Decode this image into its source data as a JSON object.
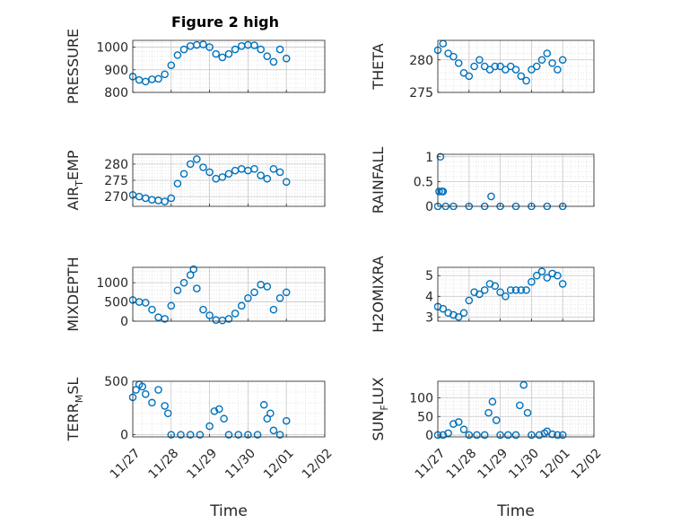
{
  "figure": {
    "title": "Figure 2 high",
    "marker_color": "#0072BD",
    "grid": true,
    "date_ticks": [
      "11/27",
      "11/28",
      "11/29",
      "11/30",
      "12/01",
      "12/02"
    ]
  },
  "chart_data": [
    {
      "type": "scatter",
      "panel": "pressure",
      "ylabel": "PRESSURE",
      "xlabel": "",
      "ylim": [
        800,
        1030
      ],
      "yticks": [
        800,
        900,
        1000
      ],
      "show_xticks": false,
      "x": [
        "11/27 00:00",
        "11/27 04:00",
        "11/27 08:00",
        "11/27 12:00",
        "11/27 16:00",
        "11/27 20:00",
        "11/28 00:00",
        "11/28 04:00",
        "11/28 08:00",
        "11/28 12:00",
        "11/28 16:00",
        "11/28 20:00",
        "11/29 00:00",
        "11/29 04:00",
        "11/29 08:00",
        "11/29 12:00",
        "11/29 16:00",
        "11/29 20:00",
        "11/30 00:00",
        "11/30 04:00",
        "11/30 08:00",
        "11/30 12:00",
        "11/30 16:00",
        "11/30 20:00",
        "12/01 00:00"
      ],
      "values": [
        870,
        855,
        848,
        858,
        860,
        880,
        920,
        965,
        990,
        1005,
        1010,
        1012,
        1000,
        970,
        955,
        970,
        990,
        1005,
        1010,
        1008,
        990,
        960,
        935,
        990,
        950
      ]
    },
    {
      "type": "scatter",
      "panel": "theta",
      "ylabel": "THETA",
      "xlabel": "",
      "ylim": [
        275,
        283
      ],
      "yticks": [
        275,
        280
      ],
      "show_xticks": false,
      "x": [
        "11/27 00:00",
        "11/27 04:00",
        "11/27 08:00",
        "11/27 12:00",
        "11/27 16:00",
        "11/27 20:00",
        "11/28 00:00",
        "11/28 04:00",
        "11/28 08:00",
        "11/28 12:00",
        "11/28 16:00",
        "11/28 20:00",
        "11/29 00:00",
        "11/29 04:00",
        "11/29 08:00",
        "11/29 12:00",
        "11/29 16:00",
        "11/29 20:00",
        "11/30 00:00",
        "11/30 04:00",
        "11/30 08:00",
        "11/30 12:00",
        "11/30 16:00",
        "11/30 20:00",
        "12/01 00:00"
      ],
      "values": [
        281.5,
        282.5,
        281.0,
        280.5,
        279.5,
        278.0,
        277.5,
        279.0,
        280.0,
        279.0,
        278.5,
        279.0,
        279.0,
        278.5,
        279.0,
        278.5,
        277.5,
        276.8,
        278.5,
        279.0,
        280.0,
        281.0,
        279.5,
        278.5,
        280.0
      ]
    },
    {
      "type": "scatter",
      "panel": "air_temp",
      "ylabel": "AIR_TEMP",
      "xlabel": "",
      "ylim": [
        267,
        283
      ],
      "yticks": [
        270,
        275,
        280
      ],
      "show_xticks": false,
      "x": [
        "11/27 00:00",
        "11/27 04:00",
        "11/27 08:00",
        "11/27 12:00",
        "11/27 16:00",
        "11/27 20:00",
        "11/28 00:00",
        "11/28 04:00",
        "11/28 08:00",
        "11/28 12:00",
        "11/28 16:00",
        "11/28 20:00",
        "11/29 00:00",
        "11/29 04:00",
        "11/29 08:00",
        "11/29 12:00",
        "11/29 16:00",
        "11/29 20:00",
        "11/30 00:00",
        "11/30 04:00",
        "11/30 08:00",
        "11/30 12:00",
        "11/30 16:00",
        "11/30 20:00",
        "12/01 00:00"
      ],
      "values": [
        270.5,
        270.0,
        269.5,
        269.0,
        268.8,
        268.5,
        269.5,
        274.0,
        277.0,
        280.0,
        281.5,
        279.0,
        277.5,
        275.5,
        276.0,
        277.0,
        278.0,
        278.5,
        278.0,
        278.5,
        276.5,
        275.5,
        278.5,
        277.5,
        274.5
      ]
    },
    {
      "type": "scatter",
      "panel": "rainfall",
      "ylabel": "RAINFALL",
      "xlabel": "",
      "ylim": [
        0,
        1.05
      ],
      "yticks": [
        0,
        0.5,
        1
      ],
      "show_xticks": false,
      "x": [
        "11/27 00:00",
        "11/27 01:00",
        "11/27 02:00",
        "11/27 03:00",
        "11/27 04:00",
        "11/27 06:00",
        "11/27 12:00",
        "11/28 00:00",
        "11/28 12:00",
        "11/28 17:00",
        "11/29 00:00",
        "11/29 12:00",
        "11/30 00:00",
        "11/30 12:00",
        "12/01 00:00"
      ],
      "values": [
        0,
        0.3,
        1.0,
        0.3,
        0.3,
        0,
        0,
        0,
        0,
        0.2,
        0,
        0,
        0,
        0,
        0
      ]
    },
    {
      "type": "scatter",
      "panel": "mixdepth",
      "ylabel": "MIXDEPTH",
      "xlabel": "",
      "ylim": [
        0,
        1400
      ],
      "yticks": [
        0,
        500,
        1000
      ],
      "show_xticks": false,
      "x": [
        "11/27 00:00",
        "11/27 04:00",
        "11/27 08:00",
        "11/27 12:00",
        "11/27 16:00",
        "11/27 20:00",
        "11/28 00:00",
        "11/28 04:00",
        "11/28 08:00",
        "11/28 12:00",
        "11/28 14:00",
        "11/28 16:00",
        "11/28 20:00",
        "11/29 00:00",
        "11/29 04:00",
        "11/29 08:00",
        "11/29 12:00",
        "11/29 16:00",
        "11/29 20:00",
        "11/30 00:00",
        "11/30 04:00",
        "11/30 08:00",
        "11/30 12:00",
        "11/30 16:00",
        "11/30 20:00",
        "12/01 00:00"
      ],
      "values": [
        550,
        500,
        480,
        300,
        100,
        60,
        400,
        800,
        1000,
        1200,
        1350,
        850,
        300,
        150,
        30,
        20,
        60,
        200,
        400,
        600,
        750,
        950,
        900,
        300,
        600,
        750
      ]
    },
    {
      "type": "scatter",
      "panel": "h2omixra",
      "ylabel": "H2OMIXRA",
      "xlabel": "",
      "ylim": [
        2.8,
        5.4
      ],
      "yticks": [
        3,
        4,
        5
      ],
      "show_xticks": false,
      "x": [
        "11/27 00:00",
        "11/27 04:00",
        "11/27 08:00",
        "11/27 12:00",
        "11/27 16:00",
        "11/27 20:00",
        "11/28 00:00",
        "11/28 04:00",
        "11/28 08:00",
        "11/28 12:00",
        "11/28 16:00",
        "11/28 20:00",
        "11/29 00:00",
        "11/29 04:00",
        "11/29 08:00",
        "11/29 12:00",
        "11/29 16:00",
        "11/29 20:00",
        "11/30 00:00",
        "11/30 04:00",
        "11/30 08:00",
        "11/30 12:00",
        "11/30 16:00",
        "11/30 20:00",
        "12/01 00:00"
      ],
      "values": [
        3.5,
        3.4,
        3.2,
        3.1,
        3.0,
        3.2,
        3.8,
        4.2,
        4.1,
        4.3,
        4.6,
        4.5,
        4.2,
        4.0,
        4.3,
        4.3,
        4.3,
        4.3,
        4.7,
        5.0,
        5.2,
        4.9,
        5.1,
        5.0,
        4.6
      ]
    },
    {
      "type": "scatter",
      "panel": "terr_msl",
      "ylabel": "TERR_MSL",
      "xlabel": "Time",
      "ylim": [
        -20,
        500
      ],
      "yticks": [
        0,
        500
      ],
      "show_xticks": true,
      "x": [
        "11/27 00:00",
        "11/27 02:00",
        "11/27 04:00",
        "11/27 06:00",
        "11/27 08:00",
        "11/27 12:00",
        "11/27 16:00",
        "11/27 20:00",
        "11/27 22:00",
        "11/28 00:00",
        "11/28 06:00",
        "11/28 12:00",
        "11/28 18:00",
        "11/29 00:00",
        "11/29 03:00",
        "11/29 06:00",
        "11/29 09:00",
        "11/29 12:00",
        "11/29 18:00",
        "11/30 00:00",
        "11/30 06:00",
        "11/30 10:00",
        "11/30 12:00",
        "11/30 14:00",
        "11/30 16:00",
        "11/30 20:00",
        "12/01 00:00"
      ],
      "values": [
        350,
        420,
        470,
        450,
        380,
        300,
        420,
        270,
        200,
        0,
        0,
        0,
        0,
        80,
        220,
        240,
        150,
        0,
        0,
        0,
        0,
        280,
        150,
        200,
        40,
        0,
        130
      ]
    },
    {
      "type": "scatter",
      "panel": "sun_flux",
      "ylabel": "SUN_FLUX",
      "xlabel": "Time",
      "ylim": [
        -5,
        145
      ],
      "yticks": [
        0,
        50,
        100
      ],
      "show_xticks": true,
      "x": [
        "11/27 00:00",
        "11/27 04:00",
        "11/27 08:00",
        "11/27 12:00",
        "11/27 16:00",
        "11/27 20:00",
        "11/28 00:00",
        "11/28 06:00",
        "11/28 12:00",
        "11/28 15:00",
        "11/28 18:00",
        "11/28 21:00",
        "11/29 00:00",
        "11/29 06:00",
        "11/29 12:00",
        "11/29 15:00",
        "11/29 18:00",
        "11/29 21:00",
        "11/30 00:00",
        "11/30 06:00",
        "11/30 10:00",
        "11/30 12:00",
        "11/30 16:00",
        "11/30 20:00",
        "12/01 00:00"
      ],
      "values": [
        0,
        0,
        5,
        30,
        35,
        15,
        0,
        0,
        0,
        60,
        90,
        40,
        0,
        0,
        0,
        80,
        135,
        60,
        0,
        0,
        5,
        10,
        2,
        0,
        0
      ]
    }
  ]
}
